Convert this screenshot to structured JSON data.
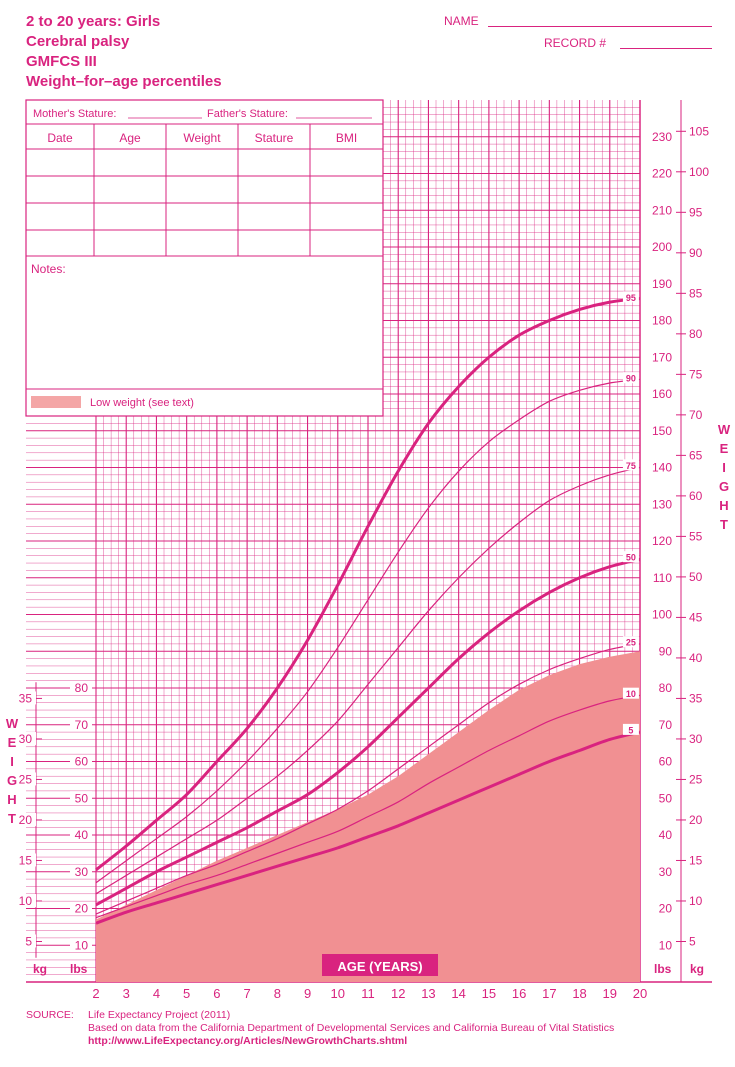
{
  "header": {
    "titles": [
      "2 to 20 years: Girls",
      "Cerebral palsy",
      "GMFCS III",
      "Weight–for–age percentiles"
    ],
    "name_label": "NAME",
    "record_label": "RECORD #"
  },
  "record_table": {
    "mothers_stature": "Mother's Stature:",
    "fathers_stature": "Father's Stature:",
    "columns": [
      "Date",
      "Age",
      "Weight",
      "Stature",
      "BMI"
    ],
    "notes_label": "Notes:",
    "legend_label": "Low weight (see text)"
  },
  "axis": {
    "side_label": "WEIGHT",
    "kg_label": "kg",
    "lbs_label": "lbs",
    "age_label": "AGE (YEARS)",
    "age_ticks": [
      "2",
      "3",
      "4",
      "5",
      "6",
      "7",
      "8",
      "9",
      "10",
      "11",
      "12",
      "13",
      "14",
      "15",
      "16",
      "17",
      "18",
      "19",
      "20"
    ]
  },
  "source": {
    "label": "SOURCE:",
    "line1": "Life Expectancy Project (2011)",
    "line2": "Based on data from the California Department of Developmental Services and California Bureau of Vital Statistics",
    "url": "http://www.LifeExpectancy.org/Articles/NewGrowthCharts.shtml"
  },
  "colors": {
    "primary": "#d9237f",
    "shade": "#f19092",
    "legend_swatch": "#f4a6a6"
  },
  "chart_data": {
    "type": "line",
    "title": "Weight–for–age percentiles",
    "xlabel": "AGE (YEARS)",
    "ylabel": "WEIGHT",
    "xlim": [
      2,
      20
    ],
    "ylim_lbs": [
      0,
      240
    ],
    "ylim_kg": [
      0,
      110
    ],
    "left_kg_ticks": [
      "5",
      "10",
      "15",
      "20",
      "25",
      "30",
      "35"
    ],
    "left_lbs_ticks": [
      "10",
      "20",
      "30",
      "40",
      "50",
      "60",
      "70",
      "80"
    ],
    "right_lbs_ticks": [
      "10",
      "20",
      "30",
      "40",
      "50",
      "60",
      "70",
      "80",
      "90",
      "100",
      "110",
      "120",
      "130",
      "140",
      "150",
      "160",
      "170",
      "180",
      "190",
      "200",
      "210",
      "220",
      "230"
    ],
    "right_kg_ticks": [
      "5",
      "10",
      "15",
      "20",
      "25",
      "30",
      "35",
      "40",
      "45",
      "50",
      "55",
      "60",
      "65",
      "70",
      "75",
      "80",
      "85",
      "90",
      "95",
      "100",
      "105"
    ],
    "x": [
      2,
      3,
      4,
      5,
      6,
      7,
      8,
      9,
      10,
      11,
      12,
      13,
      14,
      15,
      16,
      17,
      18,
      19,
      20
    ],
    "series": [
      {
        "name": "95",
        "bold": true,
        "values": [
          30.5,
          37,
          44,
          51,
          60,
          69,
          80,
          93,
          108,
          124,
          139,
          152,
          162,
          170,
          176,
          180,
          183,
          185,
          186
        ]
      },
      {
        "name": "90",
        "bold": false,
        "values": [
          27,
          33,
          39,
          45,
          52,
          60,
          69,
          79,
          91,
          104,
          117,
          129,
          139,
          147,
          153,
          158,
          161,
          163,
          164
        ]
      },
      {
        "name": "75",
        "bold": false,
        "values": [
          24,
          29,
          34,
          39,
          44,
          50,
          56,
          63,
          71,
          81,
          91,
          101,
          110,
          118,
          125,
          131,
          135,
          138,
          140
        ]
      },
      {
        "name": "50",
        "bold": true,
        "values": [
          21,
          25.5,
          30,
          34,
          38,
          42,
          46.5,
          51,
          57,
          64,
          72,
          80,
          88,
          95,
          101,
          106,
          110,
          113,
          115
        ]
      },
      {
        "name": "25",
        "bold": false,
        "values": [
          18.5,
          22,
          25.5,
          29,
          32,
          35.5,
          39,
          43,
          47,
          52,
          58,
          64,
          70,
          76,
          81,
          85,
          88,
          90.5,
          92
        ]
      },
      {
        "name": "10",
        "bold": false,
        "values": [
          17.5,
          20.5,
          23.5,
          26.5,
          29,
          32,
          35,
          38,
          41,
          45,
          49,
          54,
          58.5,
          63,
          67,
          71,
          74,
          76.5,
          78
        ]
      },
      {
        "name": "5",
        "bold": true,
        "values": [
          16,
          19,
          21.5,
          24,
          26.5,
          29,
          31.5,
          34,
          36.5,
          39.5,
          42.5,
          46,
          49.5,
          53,
          56.5,
          60,
          63,
          66,
          68
        ]
      }
    ],
    "low_weight_area": {
      "x": [
        2,
        3,
        4,
        5,
        6,
        7,
        8,
        9,
        10,
        11,
        12,
        13,
        14,
        15,
        16,
        17,
        18,
        19,
        20
      ],
      "upper": [
        17,
        21,
        25,
        29,
        33,
        36.5,
        40,
        43.5,
        47,
        51,
        56,
        62,
        68,
        74,
        79.5,
        83.5,
        86.5,
        88.5,
        90
      ]
    }
  }
}
